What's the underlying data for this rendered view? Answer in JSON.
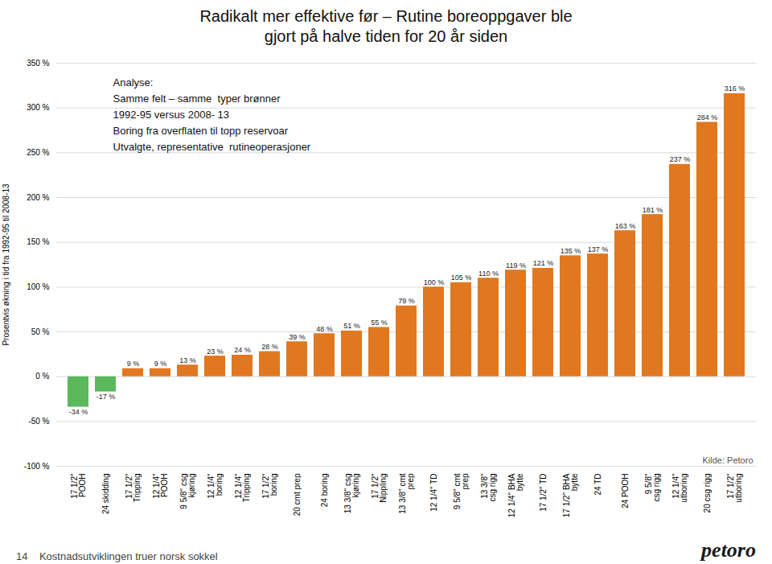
{
  "chart_data": {
    "type": "bar",
    "title": "Radikalt mer effektive før – Rutine boreoppgaver ble\ngjort på halve tiden for 20 år siden",
    "ylabel": "Prosentvis økning i tid fra 1992-95 til 2008-13",
    "categories": [
      "17 1/2\"\nPOOH",
      "24 skidding",
      "17 1/2\"\nTripping",
      "12 1/4\"\nPOOH",
      "9 5/8\" csg\nkjøring",
      "12 1/4\"\nboring",
      "12 1/4\"\nTripping",
      "17 1/2\"\nboring",
      "20 cmt prep",
      "24 boring",
      "13 3/8\" csg\nkjøring",
      "17 1/2\"\nNippling",
      "13 3/8\" cmt\nprep",
      "12 1/4\" TD",
      "9 5/8\" cmt\nprep",
      "13 3/8\"\ncsg rigg",
      "12 1/4\" BHA\nbytte",
      "17 1/2\" TD",
      "17 1/2\" BHA\nbytte",
      "24 TD",
      "24 POOH",
      "9 5/8\"\ncsg rigg",
      "12 1/4\"\nutboring",
      "20 csg rigg",
      "17 1/2\"\nutboring"
    ],
    "values": [
      -34,
      -17,
      9,
      9,
      13,
      23,
      24,
      28,
      39,
      48,
      51,
      55,
      79,
      100,
      105,
      110,
      119,
      121,
      135,
      137,
      163,
      181,
      237,
      284,
      316
    ],
    "value_labels": [
      "-34 %",
      "-17 %",
      "9 %",
      "9 %",
      "13 %",
      "23 %",
      "24 %",
      "28 %",
      "39 %",
      "48 %",
      "51 %",
      "55 %",
      "79 %",
      "100 %",
      "105 %",
      "110 %",
      "119 %",
      "121 %",
      "135 %",
      "137 %",
      "163 %",
      "181 %",
      "237 %",
      "284 %",
      "316 %"
    ],
    "data_labels": true,
    "colors": [
      "#5CB85C",
      "#5CB85C",
      "#E07820",
      "#E07820",
      "#E07820",
      "#E07820",
      "#E07820",
      "#E07820",
      "#E07820",
      "#E07820",
      "#E07820",
      "#E07820",
      "#E07820",
      "#E07820",
      "#E07820",
      "#E07820",
      "#E07820",
      "#E07820",
      "#E07820",
      "#E07820",
      "#E07820",
      "#E07820",
      "#E07820",
      "#E07820",
      "#E07820"
    ],
    "ylim": [
      -100,
      350
    ],
    "yticks": [
      {
        "value": -100,
        "label": "-100 %"
      },
      {
        "value": -50,
        "label": "-50 %"
      },
      {
        "value": 0,
        "label": "0 %"
      },
      {
        "value": 50,
        "label": "50 %"
      },
      {
        "value": 100,
        "label": "100 %"
      },
      {
        "value": 150,
        "label": "150 %"
      },
      {
        "value": 200,
        "label": "200 %"
      },
      {
        "value": 250,
        "label": "250 %"
      },
      {
        "value": 300,
        "label": "300 %"
      },
      {
        "value": 350,
        "label": "350 %"
      }
    ],
    "grid": true,
    "annotations": [
      "Analyse:",
      "Samme felt – samme  typer brønner",
      "1992-95 versus 2008- 13",
      "Boring fra overflaten til topp reservoar",
      "Utvalgte, representative  rutineoperasjoner"
    ],
    "source": "Kilde: Petoro",
    "footer": [
      "14    Kostnadsutviklingen truer norsk sokkel",
      "petoro"
    ]
  }
}
